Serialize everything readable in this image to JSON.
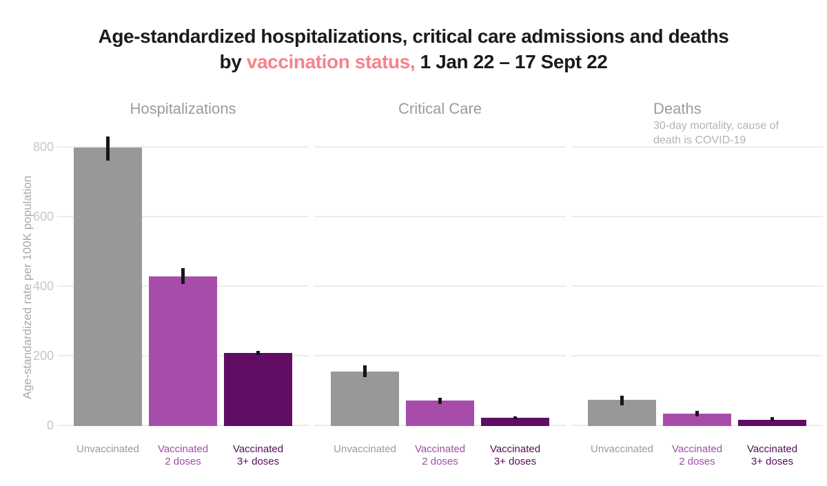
{
  "title": {
    "line1": "Age-standardized hospitalizations, critical care admissions and deaths",
    "line2_prefix": "by ",
    "line2_accent": "vaccination status,",
    "line2_suffix": " 1 Jan 22 – 17 Sept 22",
    "accent_color": "#f5838b",
    "text_color": "#1b1b1b"
  },
  "y_axis": {
    "label": "Age-standardized rate per 100K population",
    "ticks": [
      0,
      200,
      400,
      600,
      800
    ]
  },
  "series": [
    {
      "name": "Unvaccinated",
      "bar_color": "#989898",
      "label_color": "#9a9a9a",
      "label_lines": [
        "Unvaccinated"
      ]
    },
    {
      "name": "Vaccinated 2 doses",
      "bar_color": "#a84caa",
      "label_color": "#a14ca6",
      "label_lines": [
        "Vaccinated",
        "2 doses"
      ]
    },
    {
      "name": "Vaccinated 3+ doses",
      "bar_color": "#600d63",
      "label_color": "#570a5b",
      "label_lines": [
        "Vaccinated",
        "3+ doses"
      ]
    }
  ],
  "colors": {
    "grid": "#ececec",
    "error_bar": "#161616",
    "panel_title": "#9b9b9b",
    "panel_subtitle": "#b3b3b3",
    "tick_label": "#c6c6c6",
    "axis_label": "#a9a9a9"
  },
  "chart_data": {
    "type": "bar",
    "title": "Age-standardized hospitalizations, critical care admissions and deaths by vaccination status, 1 Jan 22 – 17 Sept 22",
    "ylabel": "Age-standardized rate per 100K population",
    "ylim": [
      0,
      885
    ],
    "grid": true,
    "error_bars": true,
    "legend_position": "none",
    "categories": [
      "Unvaccinated",
      "Vaccinated 2 doses",
      "Vaccinated 3+ doses"
    ],
    "panels": [
      {
        "title": "Hospitalizations",
        "subtitle": "",
        "values": [
          800,
          430,
          209
        ],
        "ci": [
          [
            762,
            832
          ],
          [
            408,
            453
          ],
          [
            204,
            216
          ]
        ]
      },
      {
        "title": "Critical Care",
        "subtitle": "",
        "values": [
          157,
          73,
          24
        ],
        "ci": [
          [
            141,
            174
          ],
          [
            63,
            81
          ],
          [
            20,
            28
          ]
        ]
      },
      {
        "title": "Deaths",
        "subtitle": "30-day mortality, cause of death is COVID-19",
        "values": [
          75,
          36,
          18
        ],
        "ci": [
          [
            59,
            87
          ],
          [
            28,
            44
          ],
          [
            13,
            24
          ]
        ]
      }
    ]
  }
}
